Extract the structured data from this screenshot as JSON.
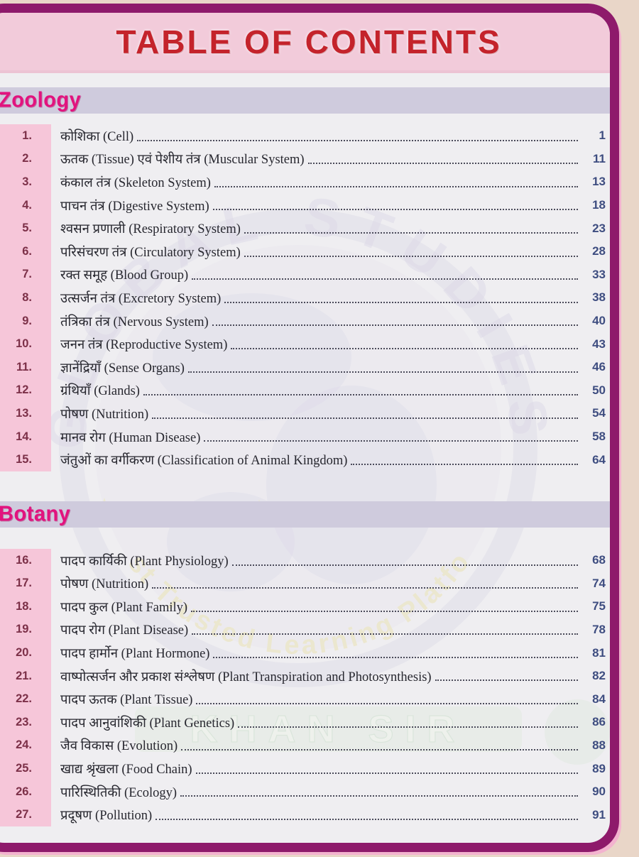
{
  "page": {
    "title": "TABLE OF CONTENTS"
  },
  "colors": {
    "outer_background": "#e9d6c8",
    "card_border_purple": "#8e1a6b",
    "card_edge_pink": "#f3b3cf",
    "header_bg_pink": "#f2cbda",
    "title_red": "#c4232b",
    "content_bg": "#efeef1",
    "section_bar_lavender": "#cfcbdd",
    "section_name_pink": "#e2137e",
    "number_strip_pink": "#f6c6d9",
    "number_text_maroon": "#7c3048",
    "page_number_blue": "#3e4d80"
  },
  "watermark": {
    "ring_text": "GLOBAL STUDIES",
    "tagline": "Most Trusted Learning Platform",
    "banner_text": "KHAN SIR"
  },
  "sections": [
    {
      "name": "Zoology",
      "items": [
        {
          "num": "1.",
          "title": "कोशिका (Cell)",
          "page": "1"
        },
        {
          "num": "2.",
          "title": "ऊतक (Tissue) एवं पेशीय तंत्र (Muscular System)",
          "page": "11"
        },
        {
          "num": "3.",
          "title": "कंकाल तंत्र (Skeleton System)",
          "page": "13"
        },
        {
          "num": "4.",
          "title": "पाचन तंत्र (Digestive System)",
          "page": "18"
        },
        {
          "num": "5.",
          "title": "श्वसन प्रणाली (Respiratory System)",
          "page": "23"
        },
        {
          "num": "6.",
          "title": "परिसंचरण तंत्र (Circulatory System)",
          "page": "28"
        },
        {
          "num": "7.",
          "title": "रक्त समूह (Blood Group)",
          "page": "33"
        },
        {
          "num": "8.",
          "title": "उत्सर्जन तंत्र (Excretory System)",
          "page": "38"
        },
        {
          "num": "9.",
          "title": "तंत्रिका तंत्र (Nervous System)",
          "page": "40"
        },
        {
          "num": "10.",
          "title": "जनन तंत्र (Reproductive System)",
          "page": "43"
        },
        {
          "num": "11.",
          "title": "ज्ञानेंद्रियाँ (Sense Organs)",
          "page": "46"
        },
        {
          "num": "12.",
          "title": "ग्रंथियाँ (Glands)",
          "page": "50"
        },
        {
          "num": "13.",
          "title": "पोषण (Nutrition)",
          "page": "54"
        },
        {
          "num": "14.",
          "title": "मानव रोग (Human Disease)",
          "page": "58"
        },
        {
          "num": "15.",
          "title": "जंतुओं का वर्गीकरण (Classification of Animal Kingdom)",
          "page": "64"
        }
      ]
    },
    {
      "name": "Botany",
      "items": [
        {
          "num": "16.",
          "title": "पादप कार्यिकी (Plant Physiology)",
          "page": "68"
        },
        {
          "num": "17.",
          "title": "पोषण (Nutrition)",
          "page": "74"
        },
        {
          "num": "18.",
          "title": "पादप कुल (Plant Family)",
          "page": "75"
        },
        {
          "num": "19.",
          "title": "पादप रोग (Plant Disease)",
          "page": "78"
        },
        {
          "num": "20.",
          "title": "पादप हार्मोन (Plant Hormone)",
          "page": "81"
        },
        {
          "num": "21.",
          "title": "वाष्पोत्सर्जन और प्रकाश संश्लेषण (Plant Transpiration and Photosynthesis)",
          "page": "82"
        },
        {
          "num": "22.",
          "title": "पादप ऊतक (Plant Tissue)",
          "page": "84"
        },
        {
          "num": "23.",
          "title": "पादप आनुवांशिकी (Plant Genetics)",
          "page": "86"
        },
        {
          "num": "24.",
          "title": "जैव विकास (Evolution)",
          "page": "88"
        },
        {
          "num": "25.",
          "title": "खाद्य श्रृंखला (Food Chain)",
          "page": "89"
        },
        {
          "num": "26.",
          "title": "पारिस्थितिकी (Ecology)",
          "page": "90"
        },
        {
          "num": "27.",
          "title": "प्रदूषण (Pollution)",
          "page": "91"
        }
      ]
    }
  ]
}
